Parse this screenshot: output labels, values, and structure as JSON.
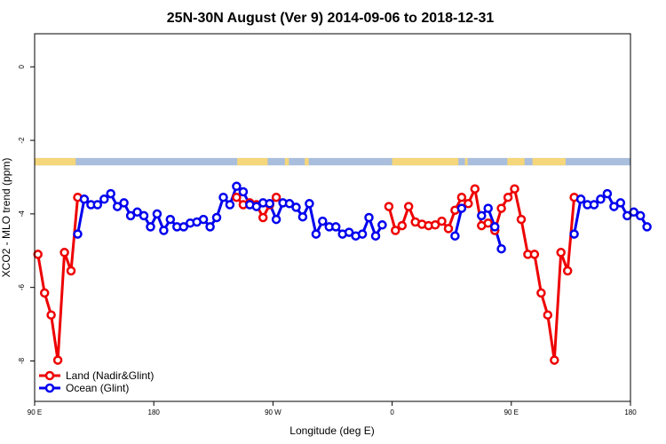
{
  "chart_data": {
    "type": "line",
    "title": "25N-30N August (Ver 9)   2014-09-06 to 2018-12-31",
    "xlabel": "Longitude (deg E)",
    "ylabel": "XCO2 - MLO trend (ppm)",
    "xlim": [
      90,
      540
    ],
    "ylim": [
      -9.1,
      0.9
    ],
    "x_ticks": [
      {
        "value": 90,
        "label": "90 E"
      },
      {
        "value": 180,
        "label": "180"
      },
      {
        "value": 270,
        "label": "90 W"
      },
      {
        "value": 360,
        "label": "0"
      },
      {
        "value": 450,
        "label": "90 E"
      },
      {
        "value": 540,
        "label": "180"
      }
    ],
    "y_ticks": [
      {
        "value": 0,
        "label": "0"
      },
      {
        "value": -2,
        "label": "-2"
      },
      {
        "value": -4,
        "label": "-4"
      },
      {
        "value": -6,
        "label": "-6"
      },
      {
        "value": -8,
        "label": "-8"
      }
    ],
    "grid": false,
    "legend_position": "bottom-left",
    "land_ocean_strip": {
      "y_range": [
        -2.68,
        -2.48
      ],
      "land_color": "#f5d67a",
      "ocean_color": "#a8bedc",
      "land_x_segments": [
        [
          90,
          121
        ],
        [
          243,
          266
        ],
        [
          279,
          282
        ],
        [
          294,
          297
        ],
        [
          360,
          410
        ],
        [
          415,
          417
        ],
        [
          447,
          460
        ],
        [
          466,
          491
        ]
      ]
    },
    "series": [
      {
        "name": "Land (Nadir&Glint)",
        "color": "#ee0000",
        "segments": [
          [
            [
              92.5,
              -5.1
            ],
            [
              97.5,
              -6.15
            ],
            [
              102.5,
              -6.75
            ],
            [
              107.5,
              -7.98
            ],
            [
              112.5,
              -5.05
            ],
            [
              117.5,
              -5.55
            ],
            [
              122.5,
              -3.55
            ]
          ],
          [
            [
              242.5,
              -3.55
            ],
            [
              247.5,
              -3.75
            ],
            [
              252.5,
              -3.7
            ],
            [
              257.5,
              -3.75
            ],
            [
              262.5,
              -4.1
            ],
            [
              267.5,
              -3.75
            ],
            [
              272.5,
              -3.55
            ]
          ],
          [
            [
              357.5,
              -3.8
            ],
            [
              362.5,
              -4.45
            ],
            [
              367.5,
              -4.32
            ],
            [
              372.5,
              -3.8
            ],
            [
              377.5,
              -4.22
            ],
            [
              382.5,
              -4.28
            ],
            [
              387.5,
              -4.32
            ],
            [
              392.5,
              -4.3
            ],
            [
              397.5,
              -4.2
            ],
            [
              402.5,
              -4.4
            ],
            [
              407.5,
              -3.9
            ],
            [
              412.5,
              -3.55
            ],
            [
              417.5,
              -3.72
            ],
            [
              422.5,
              -3.32
            ],
            [
              427.5,
              -4.32
            ],
            [
              432.5,
              -4.25
            ],
            [
              437.5,
              -4.45
            ],
            [
              442.5,
              -3.85
            ],
            [
              447.5,
              -3.55
            ],
            [
              452.5,
              -3.32
            ],
            [
              457.5,
              -4.15
            ],
            [
              462.5,
              -5.1
            ],
            [
              467.5,
              -5.1
            ],
            [
              472.5,
              -6.15
            ],
            [
              477.5,
              -6.75
            ],
            [
              482.5,
              -7.98
            ],
            [
              487.5,
              -5.05
            ],
            [
              492.5,
              -5.55
            ],
            [
              497.5,
              -3.55
            ]
          ]
        ]
      },
      {
        "name": "Ocean (Glint)",
        "color": "#0000ee",
        "segments": [
          [
            [
              122.5,
              -4.55
            ],
            [
              127.5,
              -3.6
            ],
            [
              132.5,
              -3.75
            ],
            [
              137.5,
              -3.75
            ],
            [
              142.5,
              -3.6
            ],
            [
              147.5,
              -3.45
            ],
            [
              152.5,
              -3.8
            ],
            [
              157.5,
              -3.7
            ],
            [
              162.5,
              -4.05
            ],
            [
              167.5,
              -3.95
            ],
            [
              172.5,
              -4.05
            ],
            [
              177.5,
              -4.35
            ],
            [
              182.5,
              -4.0
            ],
            [
              187.5,
              -4.45
            ],
            [
              192.5,
              -4.15
            ],
            [
              197.5,
              -4.35
            ],
            [
              202.5,
              -4.35
            ],
            [
              207.5,
              -4.25
            ],
            [
              212.5,
              -4.22
            ],
            [
              217.5,
              -4.15
            ],
            [
              222.5,
              -4.35
            ],
            [
              227.5,
              -4.1
            ],
            [
              232.5,
              -3.55
            ],
            [
              237.5,
              -3.75
            ],
            [
              242.5,
              -3.25
            ],
            [
              247.5,
              -3.4
            ],
            [
              252.5,
              -3.75
            ],
            [
              257.5,
              -3.8
            ],
            [
              262.5,
              -3.7
            ],
            [
              267.5,
              -3.72
            ],
            [
              272.5,
              -4.15
            ],
            [
              277.5,
              -3.7
            ],
            [
              282.5,
              -3.72
            ],
            [
              287.5,
              -3.82
            ],
            [
              292.5,
              -4.08
            ],
            [
              297.5,
              -3.72
            ],
            [
              302.5,
              -4.55
            ],
            [
              307.5,
              -4.2
            ],
            [
              312.5,
              -4.35
            ],
            [
              317.5,
              -4.35
            ],
            [
              322.5,
              -4.55
            ],
            [
              327.5,
              -4.5
            ],
            [
              332.5,
              -4.6
            ],
            [
              337.5,
              -4.55
            ],
            [
              342.5,
              -4.1
            ],
            [
              347.5,
              -4.6
            ],
            [
              352.5,
              -4.3
            ]
          ],
          [
            [
              407.5,
              -4.6
            ],
            [
              412.5,
              -3.85
            ]
          ],
          [
            [
              427.5,
              -4.05
            ],
            [
              432.5,
              -3.85
            ],
            [
              437.5,
              -4.35
            ],
            [
              442.5,
              -4.95
            ]
          ],
          [
            [
              497.5,
              -4.55
            ],
            [
              502.5,
              -3.6
            ],
            [
              507.5,
              -3.75
            ],
            [
              512.5,
              -3.75
            ],
            [
              517.5,
              -3.6
            ],
            [
              522.5,
              -3.45
            ],
            [
              527.5,
              -3.8
            ],
            [
              532.5,
              -3.7
            ],
            [
              537.5,
              -4.05
            ],
            [
              542.5,
              -3.95
            ],
            [
              547.5,
              -4.05
            ],
            [
              552.5,
              -4.35
            ]
          ]
        ]
      }
    ]
  }
}
